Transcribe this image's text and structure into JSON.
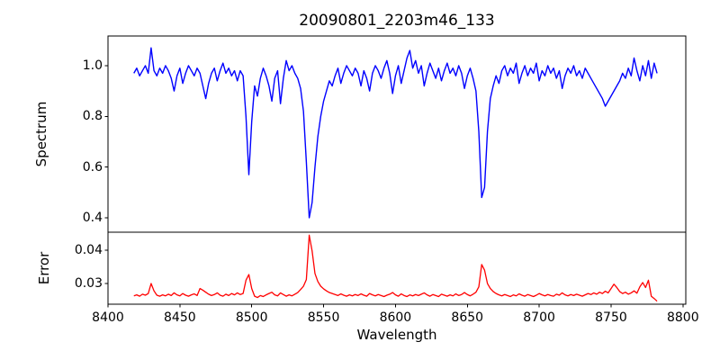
{
  "chart_data": {
    "type": "line",
    "title": "20090801_2203m46_133",
    "xlabel": "Wavelength",
    "xlim": [
      8400,
      8802
    ],
    "xticks": [
      8400,
      8450,
      8500,
      8550,
      8600,
      8650,
      8700,
      8750,
      8800
    ],
    "xtick_labels": [
      "8400",
      "8450",
      "8500",
      "8550",
      "8600",
      "8650",
      "8700",
      "8750",
      "8800"
    ],
    "x_start": 8418,
    "x_step": 2,
    "legend": "none",
    "grid": false,
    "annotations": [
      "absorption lines near 8498, 8542, 8662 with matching error peaks"
    ],
    "panels": [
      {
        "name": "spectrum",
        "ylabel": "Spectrum",
        "line_color": "#0000ff",
        "ylim": [
          0.343,
          1.117
        ],
        "yticks": [
          0.4,
          0.6,
          0.8,
          1.0
        ],
        "ytick_labels": [
          "0.4",
          "0.6",
          "0.8",
          "1.0"
        ],
        "values": [
          0.97,
          0.99,
          0.96,
          0.98,
          1.0,
          0.97,
          1.07,
          0.98,
          0.96,
          0.99,
          0.97,
          1.0,
          0.98,
          0.95,
          0.9,
          0.96,
          0.99,
          0.93,
          0.97,
          1.0,
          0.98,
          0.96,
          0.99,
          0.97,
          0.92,
          0.87,
          0.93,
          0.97,
          0.99,
          0.94,
          0.98,
          1.01,
          0.97,
          0.99,
          0.96,
          0.98,
          0.94,
          0.98,
          0.96,
          0.8,
          0.57,
          0.78,
          0.92,
          0.88,
          0.95,
          0.99,
          0.96,
          0.92,
          0.86,
          0.95,
          0.98,
          0.85,
          0.95,
          1.02,
          0.98,
          1.0,
          0.97,
          0.95,
          0.91,
          0.82,
          0.62,
          0.4,
          0.46,
          0.6,
          0.72,
          0.8,
          0.86,
          0.9,
          0.94,
          0.92,
          0.96,
          0.99,
          0.93,
          0.97,
          1.0,
          0.98,
          0.96,
          0.99,
          0.97,
          0.92,
          0.98,
          0.95,
          0.9,
          0.97,
          1.0,
          0.98,
          0.95,
          0.99,
          1.02,
          0.97,
          0.89,
          0.96,
          1.0,
          0.93,
          0.98,
          1.03,
          1.06,
          0.99,
          1.02,
          0.97,
          1.0,
          0.92,
          0.97,
          1.01,
          0.98,
          0.95,
          0.99,
          0.94,
          0.98,
          1.01,
          0.97,
          0.99,
          0.96,
          1.0,
          0.97,
          0.91,
          0.96,
          0.99,
          0.95,
          0.9,
          0.74,
          0.48,
          0.52,
          0.74,
          0.87,
          0.92,
          0.96,
          0.93,
          0.98,
          1.0,
          0.96,
          0.99,
          0.97,
          1.01,
          0.93,
          0.97,
          1.0,
          0.96,
          0.99,
          0.97,
          1.01,
          0.94,
          0.98,
          0.96,
          1.0,
          0.97,
          0.99,
          0.95,
          0.98,
          0.91,
          0.96,
          0.99,
          0.97,
          1.0,
          0.96,
          0.98,
          0.95,
          0.99,
          0.97,
          0.95,
          0.93,
          0.91,
          0.89,
          0.87,
          0.84,
          0.86,
          0.88,
          0.9,
          0.92,
          0.94,
          0.97,
          0.95,
          0.99,
          0.96,
          1.03,
          0.98,
          0.94,
          1.0,
          0.96,
          1.02,
          0.95,
          1.01,
          0.97
        ]
      },
      {
        "name": "error",
        "ylabel": "Error",
        "line_color": "#ff0000",
        "ylim": [
          0.0238,
          0.0454
        ],
        "yticks": [
          0.03,
          0.04
        ],
        "ytick_labels": [
          "0.03",
          "0.04"
        ],
        "values": [
          0.0263,
          0.0266,
          0.0262,
          0.0268,
          0.0265,
          0.027,
          0.03,
          0.0278,
          0.0265,
          0.0262,
          0.0266,
          0.0263,
          0.0268,
          0.0264,
          0.0272,
          0.0266,
          0.0263,
          0.027,
          0.0265,
          0.0262,
          0.0266,
          0.0269,
          0.0264,
          0.0285,
          0.028,
          0.0274,
          0.0268,
          0.0264,
          0.0267,
          0.0272,
          0.0265,
          0.0262,
          0.0268,
          0.0264,
          0.027,
          0.0266,
          0.0272,
          0.0267,
          0.027,
          0.031,
          0.0327,
          0.0285,
          0.0262,
          0.0258,
          0.0264,
          0.0261,
          0.0266,
          0.027,
          0.0274,
          0.0266,
          0.0263,
          0.0272,
          0.0267,
          0.0262,
          0.0266,
          0.0263,
          0.0268,
          0.0273,
          0.0282,
          0.0292,
          0.0312,
          0.0445,
          0.0398,
          0.033,
          0.0306,
          0.0292,
          0.0284,
          0.0278,
          0.0273,
          0.027,
          0.0267,
          0.0264,
          0.0269,
          0.0265,
          0.0262,
          0.0266,
          0.0263,
          0.0267,
          0.0264,
          0.0269,
          0.0265,
          0.0262,
          0.027,
          0.0266,
          0.0263,
          0.0267,
          0.0264,
          0.0261,
          0.0265,
          0.0268,
          0.0273,
          0.0266,
          0.0262,
          0.0269,
          0.0264,
          0.0261,
          0.0266,
          0.0263,
          0.0267,
          0.0264,
          0.0268,
          0.0272,
          0.0266,
          0.0262,
          0.0267,
          0.0264,
          0.0261,
          0.0268,
          0.0265,
          0.0262,
          0.0266,
          0.0263,
          0.0269,
          0.0264,
          0.0267,
          0.0273,
          0.0267,
          0.0263,
          0.0268,
          0.0274,
          0.029,
          0.0357,
          0.034,
          0.03,
          0.0285,
          0.0276,
          0.027,
          0.0266,
          0.0263,
          0.0267,
          0.0264,
          0.0261,
          0.0266,
          0.0263,
          0.0269,
          0.0265,
          0.0262,
          0.0267,
          0.0264,
          0.0261,
          0.0265,
          0.027,
          0.0266,
          0.0263,
          0.0267,
          0.0264,
          0.0262,
          0.0268,
          0.0265,
          0.0272,
          0.0266,
          0.0263,
          0.0267,
          0.0264,
          0.0268,
          0.0265,
          0.0262,
          0.0266,
          0.027,
          0.0267,
          0.0272,
          0.0268,
          0.0274,
          0.027,
          0.0277,
          0.0272,
          0.0285,
          0.0298,
          0.0288,
          0.0276,
          0.027,
          0.0274,
          0.0268,
          0.0272,
          0.0278,
          0.0271,
          0.029,
          0.0303,
          0.0288,
          0.031,
          0.0262,
          0.0255,
          0.0247
        ]
      }
    ]
  }
}
